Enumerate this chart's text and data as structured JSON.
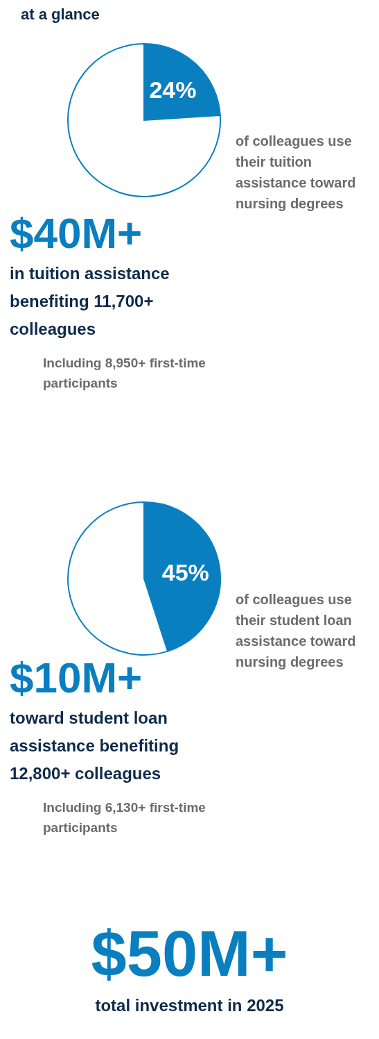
{
  "chart_data": [
    {
      "type": "pie",
      "title": "at a glance",
      "categories": [
        null,
        null
      ],
      "values": [
        24,
        76
      ],
      "colors": [
        "#0a7fc0",
        "#ffffff"
      ],
      "value_labels": [
        "24%",
        null
      ],
      "annotations": [
        "of colleagues use their tuition assistance toward nursing degrees"
      ]
    },
    {
      "type": "other",
      "title": "$40M+",
      "subtitle": "in tuition assistance benefiting 11,700+ colleagues",
      "annotations": [
        "Including 8,950+ first-time participants"
      ]
    },
    {
      "type": "pie",
      "categories": [
        null,
        null
      ],
      "values": [
        45,
        55
      ],
      "colors": [
        "#0a7fc0",
        "#ffffff"
      ],
      "value_labels": [
        "45%",
        null
      ],
      "annotations": [
        "of colleagues use their student loan assistance toward nursing degrees"
      ]
    },
    {
      "type": "other",
      "title": "$10M+",
      "subtitle": "toward student loan assistance benefiting 12,800+ colleagues",
      "annotations": [
        "Including 6,130+ first-time participants"
      ]
    },
    {
      "type": "other",
      "title": "$50M+",
      "subtitle": "total investment in 2025"
    }
  ]
}
